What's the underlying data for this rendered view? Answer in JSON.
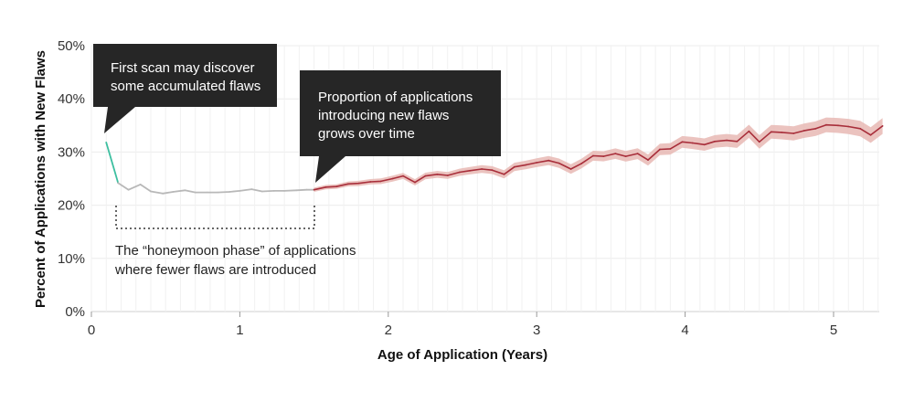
{
  "chart_data": {
    "type": "line",
    "title": "",
    "xlabel": "Age of Application (Years)",
    "ylabel": "Percent of Applications with New Flaws",
    "xlim": [
      0,
      5.33
    ],
    "ylim": [
      0,
      50
    ],
    "x_ticks": [
      "0",
      "1",
      "2",
      "3",
      "4",
      "5"
    ],
    "y_ticks": [
      "0%",
      "10%",
      "20%",
      "30%",
      "40%",
      "50%"
    ],
    "grid": true,
    "series": [
      {
        "color": "#3dbfa0",
        "x": [
          0.1,
          0.18
        ],
        "y": [
          31.8,
          24.2
        ]
      },
      {
        "color": "#b8b8b8",
        "x": [
          0.18,
          0.25,
          0.33,
          0.4,
          0.48,
          0.55,
          0.63,
          0.7,
          0.78,
          0.85,
          0.93,
          1.0,
          1.08,
          1.15,
          1.23,
          1.3,
          1.38,
          1.45,
          1.5
        ],
        "y": [
          24.2,
          22.9,
          23.9,
          22.6,
          22.2,
          22.5,
          22.8,
          22.4,
          22.4,
          22.4,
          22.5,
          22.7,
          23.0,
          22.6,
          22.7,
          22.7,
          22.8,
          22.9,
          22.9
        ]
      },
      {
        "color": "#a82e3a",
        "band_color": "#e8b8b4",
        "x": [
          1.5,
          1.58,
          1.65,
          1.73,
          1.8,
          1.88,
          1.95,
          2.03,
          2.1,
          2.18,
          2.25,
          2.33,
          2.4,
          2.48,
          2.55,
          2.63,
          2.7,
          2.78,
          2.85,
          2.93,
          3.0,
          3.08,
          3.15,
          3.23,
          3.3,
          3.38,
          3.45,
          3.53,
          3.6,
          3.68,
          3.75,
          3.83,
          3.9,
          3.98,
          4.05,
          4.13,
          4.2,
          4.28,
          4.35,
          4.43,
          4.5,
          4.58,
          4.65,
          4.73,
          4.8,
          4.88,
          4.95,
          5.03,
          5.1,
          5.18,
          5.25,
          5.33
        ],
        "y": [
          22.9,
          23.4,
          23.5,
          24.0,
          24.1,
          24.4,
          24.5,
          25.0,
          25.5,
          24.3,
          25.5,
          25.8,
          25.6,
          26.2,
          26.5,
          26.8,
          26.6,
          25.8,
          27.2,
          27.6,
          28.0,
          28.4,
          27.9,
          26.8,
          27.8,
          29.3,
          29.2,
          29.7,
          29.2,
          29.7,
          28.5,
          30.5,
          30.6,
          31.9,
          31.7,
          31.4,
          32.0,
          32.2,
          32.0,
          33.9,
          31.9,
          33.8,
          33.7,
          33.5,
          34.0,
          34.4,
          35.1,
          35.0,
          34.8,
          34.4,
          33.2,
          34.9
        ]
      }
    ],
    "annotations": [
      {
        "lines": [
          "First scan may discover",
          "some accumulated flaws"
        ]
      },
      {
        "lines": [
          "Proportion of applications",
          "introducing new flaws",
          "grows over time"
        ]
      },
      {
        "lines": [
          "The “honeymoon phase” of applications",
          "where fewer flaws are introduced"
        ]
      }
    ]
  }
}
